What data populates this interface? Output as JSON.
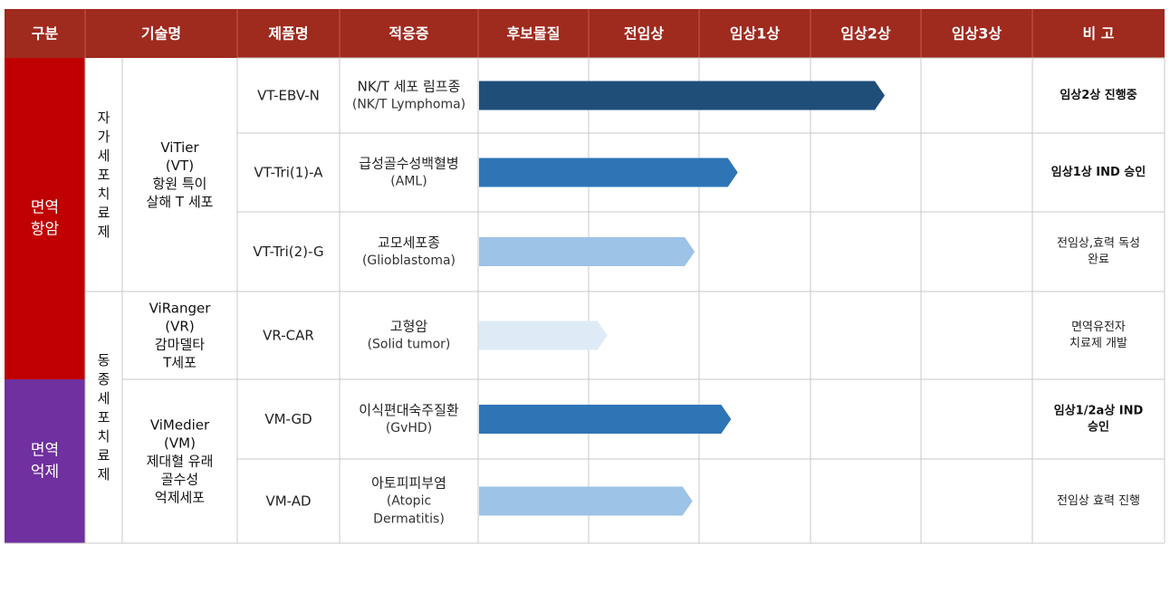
{
  "chart_data": {
    "type": "table",
    "headers": [
      "구분",
      "기술명",
      "제품명",
      "적응증",
      "후보물질",
      "전임상",
      "임상1상",
      "임상2상",
      "임상3상",
      "비 고"
    ],
    "stages": [
      "후보물질",
      "전임상",
      "임상1상",
      "임상2상",
      "임상3상"
    ],
    "categories": [
      {
        "label": [
          "면역",
          "항암"
        ],
        "color": "#c00000",
        "rows": 4
      },
      {
        "label": [
          "면역",
          "억제"
        ],
        "color": "#7030a0",
        "rows": 2
      }
    ],
    "therapy_types": [
      {
        "label": "자가세포치료제",
        "rows": 3
      },
      {
        "label": "동종세포치료제",
        "rows": 3
      }
    ],
    "technologies": [
      {
        "lines": [
          "ViTier",
          "(VT)",
          "항원 특이",
          "살해 T 세포"
        ],
        "rows": 3
      },
      {
        "lines": [
          "ViRanger",
          "(VR)",
          "감마델타",
          "T세포"
        ],
        "rows": 1
      },
      {
        "lines": [
          "ViMedier",
          "(VM)",
          "제대혈 유래",
          "골수성",
          "억제세포"
        ],
        "rows": 2
      }
    ],
    "products": [
      {
        "name": "VT-EBV-N",
        "indication": [
          "NK/T 세포 림프종",
          "(NK/T Lymphoma)"
        ],
        "progress": 3.68,
        "color": "#1f4e79",
        "remark": [
          "임상2상 진행중"
        ],
        "remark_bold": true
      },
      {
        "name": "VT-Tri(1)-A",
        "indication": [
          "급성골수성백혈병",
          "(AML)"
        ],
        "progress": 2.35,
        "color": "#2e75b6",
        "remark": [
          "임상1상 IND 승인"
        ],
        "remark_bold": true
      },
      {
        "name": "VT-Tri(2)-G",
        "indication": [
          "교모세포종",
          "(Glioblastoma)"
        ],
        "progress": 1.96,
        "color": "#9dc3e6",
        "remark": [
          "전임상,효력 독성",
          "완료"
        ],
        "remark_bold": false
      },
      {
        "name": "VR-CAR",
        "indication": [
          "고형암",
          "(Solid tumor)"
        ],
        "progress": 1.17,
        "color": "#deebf7",
        "remark": [
          "면역유전자",
          "치료제 개발"
        ],
        "remark_bold": false
      },
      {
        "name": "VM-GD",
        "indication": [
          "이식편대숙주질환",
          "(GvHD)"
        ],
        "progress": 2.29,
        "color": "#2e75b6",
        "remark": [
          "임상1/2a상 IND",
          "승인"
        ],
        "remark_bold": true
      },
      {
        "name": "VM-AD",
        "indication": [
          "아토피피부염",
          "(Atopic",
          "Dermatitis)"
        ],
        "progress": 1.94,
        "color": "#9dc3e6",
        "remark": [
          "전임상 효력 진행"
        ],
        "remark_bold": false
      }
    ]
  }
}
